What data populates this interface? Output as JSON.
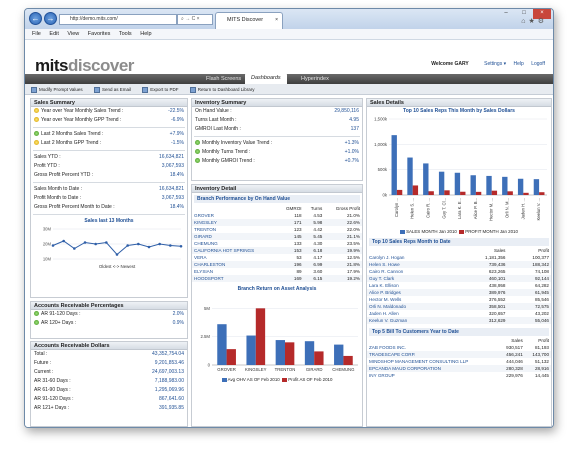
{
  "browser": {
    "url": "http://demo.mits.com/",
    "address_controls": "⌕ → C ×",
    "tab_title": "MITS Discover",
    "tab_close": "×",
    "menu": [
      "File",
      "Edit",
      "View",
      "Favorites",
      "Tools",
      "Help"
    ],
    "window_buttons": [
      "–",
      "□",
      "×"
    ],
    "right_icons": "⌂★⚙"
  },
  "header": {
    "logo_a": "mits",
    "logo_b": "discover",
    "welcome": "Welcome GARY",
    "settings": "Settings",
    "help": "Help",
    "logoff": "Logoff"
  },
  "nav": {
    "tabs": [
      "Flash Screens",
      "Dashboards",
      "Hyperindex"
    ],
    "active": "Dashboards"
  },
  "toolbar": [
    "Modify Prompt Values",
    "Send as Email",
    "Export to PDF",
    "Return to Dashboard Library"
  ],
  "sales_summary": {
    "title": "Sales Summary",
    "trends": [
      {
        "label": "Year over Year Monthly Sales Trend :",
        "value": "-22.5%",
        "icon": "yellow"
      },
      {
        "label": "Year over Year Monthly GPP Trend :",
        "value": "-6.9%",
        "icon": "yellow"
      },
      {
        "label": "Last 2 Months Sales Trend :",
        "value": "+7.9%",
        "icon": "green"
      },
      {
        "label": "Last 2 Months GPP Trend :",
        "value": "-1.5%",
        "icon": "yellow"
      }
    ],
    "ytd": [
      {
        "label": "Sales YTD :",
        "value": "16,634,821"
      },
      {
        "label": "Profit YTD :",
        "value": "3,067,593"
      },
      {
        "label": "Gross Profit Percent YTD :",
        "value": "18.4%"
      }
    ],
    "mtd": [
      {
        "label": "Sales Month to Date :",
        "value": "16,634,821"
      },
      {
        "label": "Profit Month to Date :",
        "value": "3,067,593"
      },
      {
        "label": "Gross Profit Percent Month to Date :",
        "value": "18.4%"
      }
    ],
    "spark_title": "Sales last 13 Months",
    "spark_axis": "Oldest <-> Newest",
    "spark_yticks": [
      "30M",
      "20M",
      "10M"
    ]
  },
  "ar_pct": {
    "title": "Accounts Receivable Percentages",
    "rows": [
      {
        "label": "AR 91-120 Days :",
        "value": "2.0%"
      },
      {
        "label": "AR 120+ Days :",
        "value": "0.9%"
      }
    ]
  },
  "ar_dollars": {
    "title": "Accounts Receivable Dollars",
    "rows": [
      {
        "label": "Total :",
        "value": "43,352,754.04"
      },
      {
        "label": "Future :",
        "value": "9,201,853.46"
      },
      {
        "label": "Current :",
        "value": "24,697,003.13"
      },
      {
        "label": "AR 31-60 Days :",
        "value": "7,188,983.00"
      },
      {
        "label": "AR 61-90 Days :",
        "value": "1,295,069.96"
      },
      {
        "label": "AR 91-120 Days :",
        "value": "867,641.60"
      },
      {
        "label": "AR 121+ Days :",
        "value": "391,935.85"
      }
    ]
  },
  "inventory_summary": {
    "title": "Inventory Summary",
    "rows": [
      {
        "label": "On Hand Value :",
        "value": "29,850,116"
      },
      {
        "label": "Turns Last Month :",
        "value": "4.95"
      },
      {
        "label": "GMROI Last Month :",
        "value": "137"
      }
    ],
    "trends": [
      {
        "label": "Monthly Inventory Value Trend :",
        "value": "+1.3%"
      },
      {
        "label": "Monthly Turns Trend :",
        "value": "+1.0%"
      },
      {
        "label": "Monthly GMROI Trend :",
        "value": "+0.7%"
      }
    ]
  },
  "inventory_detail": {
    "title": "Inventory Detail",
    "table_title": "Branch Performance by On Hand Value",
    "headers": [
      "",
      "GMROI",
      "Turns",
      "Gross Profit"
    ],
    "rows": [
      [
        "GROVER",
        "118",
        "4.53",
        "21.0%"
      ],
      [
        "KINGSLEY",
        "171",
        "5.98",
        "22.6%"
      ],
      [
        "TRENTON",
        "123",
        "4.42",
        "22.0%"
      ],
      [
        "GIRARD",
        "145",
        "5.45",
        "21.1%"
      ],
      [
        "CHEMUNG",
        "133",
        "4.30",
        "23.5%"
      ],
      [
        "CALIFORNIA HOT SPRINGS",
        "153",
        "6.18",
        "19.9%"
      ],
      [
        "VERA",
        "53",
        "4.17",
        "12.5%"
      ],
      [
        "CHARLESTON",
        "196",
        "6.99",
        "21.8%"
      ],
      [
        "ELYSIAN",
        "89",
        "3.60",
        "17.9%"
      ],
      [
        "HOODSPORT",
        "169",
        "6.15",
        "19.2%"
      ]
    ]
  },
  "sales_details": {
    "title": "Sales Details",
    "top10_table_title": "Top 10 Sales Reps Month to Date",
    "top10_headers": [
      "",
      "Sales",
      "Profit"
    ],
    "top10_rows": [
      [
        "Carolyn J. Hogan",
        "1,181,356",
        "100,377"
      ],
      [
        "Helen S. Howe",
        "739,436",
        "188,342"
      ],
      [
        "Cairo R. Cannon",
        "623,265",
        "74,108"
      ],
      [
        "Guy T. Clark",
        "460,101",
        "92,144"
      ],
      [
        "Lara K. Ellison",
        "438,958",
        "64,282"
      ],
      [
        "Alice P. Bridges",
        "389,976",
        "61,945"
      ],
      [
        "Hector M. Wells",
        "376,552",
        "85,546"
      ],
      [
        "Orli N. Maldonado",
        "358,501",
        "72,575"
      ],
      [
        "Jaden H. Allen",
        "320,657",
        "43,202"
      ],
      [
        "Keelun V. Guzman",
        "312,629",
        "55,046"
      ]
    ],
    "bill_table_title": "Top 5 Bill To Customers Year to Date",
    "bill_headers": [
      "",
      "Sales",
      "Profit"
    ],
    "bill_rows": [
      [
        "ZAB FOODS INC.",
        "930,517",
        "81,193"
      ],
      [
        "TRADESCAPE CORP.",
        "456,241",
        "143,700"
      ],
      [
        "MINDSHOP MANAGEMENT CONSULTING LLP",
        "444,046",
        "51,132"
      ],
      [
        "EPCANDA MAUD CORPORATION",
        "280,328",
        "28,916"
      ],
      [
        "INY GROUP",
        "229,976",
        "14,445"
      ]
    ]
  },
  "chart_data": [
    {
      "type": "line",
      "title": "Sales last 13 Months",
      "xlabel": "Oldest <-> Newest",
      "ylabel": "",
      "ylim": [
        10000000,
        30000000
      ],
      "yticks": [
        "10M",
        "20M",
        "30M"
      ],
      "x": [
        1,
        2,
        3,
        4,
        5,
        6,
        7,
        8,
        9,
        10,
        11,
        12,
        13
      ],
      "values": [
        19000000,
        22000000,
        17000000,
        21000000,
        20000000,
        21000000,
        13000000,
        19000000,
        20000000,
        18000000,
        20000000,
        19000000,
        18500000
      ],
      "color": "#2f5fa8"
    },
    {
      "type": "bar",
      "title": "Branch Return on Asset Analysis",
      "categories": [
        "GROVER",
        "KINGSLEY",
        "TRENTON",
        "GIRARD",
        "CHEMUNG"
      ],
      "ylim": [
        0,
        6000000
      ],
      "yticks": [
        "0",
        "2.5M",
        "5M"
      ],
      "series": [
        {
          "name": "Avg OHV AS OF Feb 2010",
          "values": [
            3600000,
            2600000,
            2200000,
            2100000,
            1800000
          ],
          "color": "#3d6fb8"
        },
        {
          "name": "Profit AS OF Feb 2010",
          "values": [
            1400000,
            5000000,
            2000000,
            1200000,
            800000
          ],
          "color": "#b52a2a"
        }
      ],
      "grid": true,
      "legend": "bottom"
    },
    {
      "type": "bar",
      "title": "Top 10 Sales Reps This Month by Sales Dollars",
      "categories": [
        "Carolyn ...",
        "Helen S. ...",
        "Cairo R. ...",
        "Guy T. Cl...",
        "Lara K. E...",
        "Alice P. B...",
        "Hector M. ...",
        "Orli N. M...",
        "Jaden H. ...",
        "Keelun V. ..."
      ],
      "ylim": [
        0,
        1500000
      ],
      "yticks": [
        "0k",
        "500k",
        "1,000k",
        "1,500k"
      ],
      "series": [
        {
          "name": "SALES MONTH Jan 2010",
          "values": [
            1181356,
            739436,
            623265,
            460101,
            438958,
            389976,
            376552,
            358501,
            320657,
            312629
          ],
          "color": "#3d6fb8"
        },
        {
          "name": "PROFIT MONTH Jan 2010",
          "values": [
            100377,
            188342,
            74108,
            92144,
            64282,
            61945,
            85546,
            72575,
            43202,
            55046
          ],
          "color": "#b52a2a"
        }
      ],
      "grid": true,
      "legend": "bottom"
    }
  ]
}
